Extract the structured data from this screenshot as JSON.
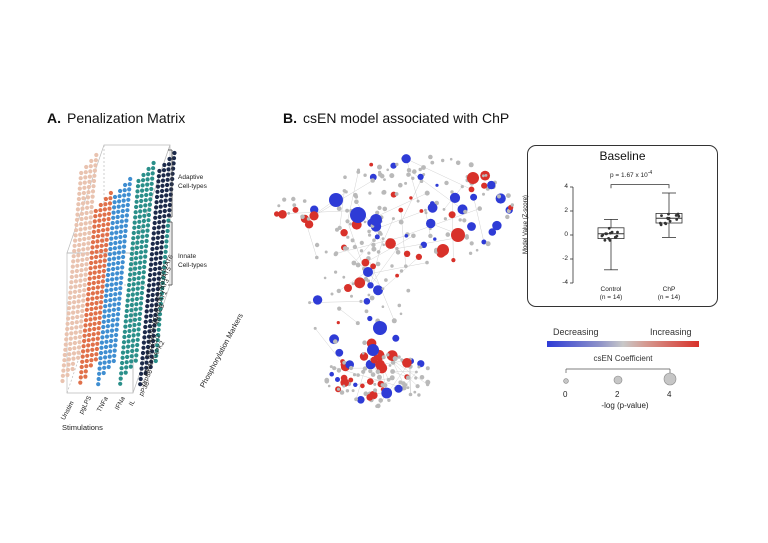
{
  "panel_a": {
    "letter": "A.",
    "title": "Penalization Matrix",
    "adaptive_label_1": "Adaptive",
    "adaptive_label_2": "Cell-types",
    "innate_label_1": "Innate",
    "innate_label_2": "Cell-types",
    "markers_axis": "Phosphorylation Markers",
    "markers": [
      "pSTAT6",
      "pSTAT5",
      "pSTAT3",
      "pSTAT1",
      "pCREB",
      "NF-κB",
      "IκB",
      "pERK1/2",
      "pMAPKAPK2",
      "prpS6",
      "pP38"
    ],
    "stimulations_axis": "Stimulations",
    "stimulations": [
      "Unstim",
      "pgLPS",
      "TNFa",
      "IFNa",
      "IL"
    ],
    "colors": {
      "unstim": "#e9c3b0",
      "pgLPS": "#e0704a",
      "TNFa": "#3f8ed1",
      "IFNa": "#2a8f8a",
      "IL": "#1c2a4a"
    }
  },
  "panel_b": {
    "letter": "B.",
    "title": "csEN model associated with ChP",
    "inset": {
      "title": "Baseline",
      "pvalue": "p = 1.67 x 10",
      "pvalue_exp": "-4",
      "ylabel": "Model Value (Z-score)",
      "yticks": [
        "4",
        "2",
        "0",
        "-2",
        "-4"
      ],
      "groups": [
        {
          "name": "Control",
          "n": "(n = 14)",
          "min": -2.9,
          "q1": -0.3,
          "median": 0.1,
          "q3": 0.6,
          "max": 1.3
        },
        {
          "name": "ChP",
          "n": "(n = 14)",
          "min": -0.2,
          "q1": 1.0,
          "median": 1.4,
          "q3": 1.8,
          "max": 3.5
        }
      ]
    },
    "legend": {
      "decreasing": "Decreasing",
      "increasing": "Increasing",
      "coef_label": "csEN Coefficient",
      "size_ticks": [
        "0",
        "2",
        "4"
      ],
      "size_label": "-log (p-value)",
      "color_low": "#2e3bd6",
      "color_high": "#d8312a"
    }
  }
}
